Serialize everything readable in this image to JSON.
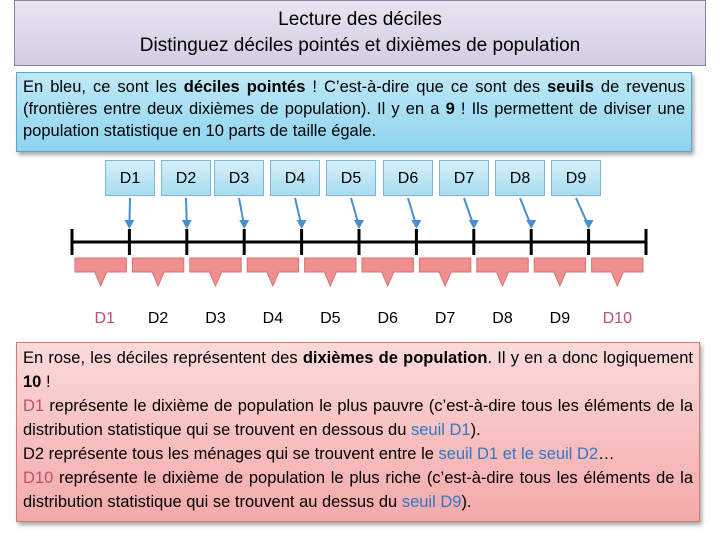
{
  "title": {
    "line1": "Lecture des déciles",
    "line2": "Distinguez déciles pointés et dixièmes de population"
  },
  "blue_box": {
    "t1": "En bleu, ce sont les ",
    "b1": "déciles pointés",
    "t2": " ! C’est-à-dire que ce sont des ",
    "b2": "seuils",
    "t3": " de revenus (frontières entre deux dixièmes de population). Il y en a ",
    "b3": "9",
    "t4": " ! Ils permettent de diviser une population statistique en 10 parts de taille égale."
  },
  "deciles": [
    "D1",
    "D2",
    "D3",
    "D4",
    "D5",
    "D6",
    "D7",
    "D8",
    "D9"
  ],
  "dixiemes": [
    "D1",
    "D2",
    "D3",
    "D4",
    "D5",
    "D6",
    "D7",
    "D8",
    "D9",
    "D10"
  ],
  "pink_box": {
    "p1_a": "En rose, les déciles représentent des ",
    "p1_b": "dixièmes de population",
    "p1_c": ". Il y en a donc logiquement ",
    "p1_d": "10",
    "p1_e": " !",
    "p2_a": "D1",
    "p2_b": " représente le dixième de population le plus pauvre (c’est-à-dire tous les éléments de la distribution statistique qui se trouvent en dessous du ",
    "p2_c": "seuil D1",
    "p2_d": ").",
    "p3_a": "D2 représente tous les ménages qui se trouvent entre le ",
    "p3_b": "seuil D1 et le seuil D2",
    "p3_c": "…",
    "p4_a": "D10",
    "p4_b": " représente le dixième de population le plus riche (c’est-à-dire tous les éléments de la distribution statistique qui se trouvent au dessus du ",
    "p4_c": "seuil D9",
    "p4_d": ")."
  },
  "colors": {
    "decile_blue": "#4a8ed0",
    "dixieme_pink": "#f08f8f",
    "d1_d10_pink": "#c0506a",
    "axis": "#000000"
  }
}
